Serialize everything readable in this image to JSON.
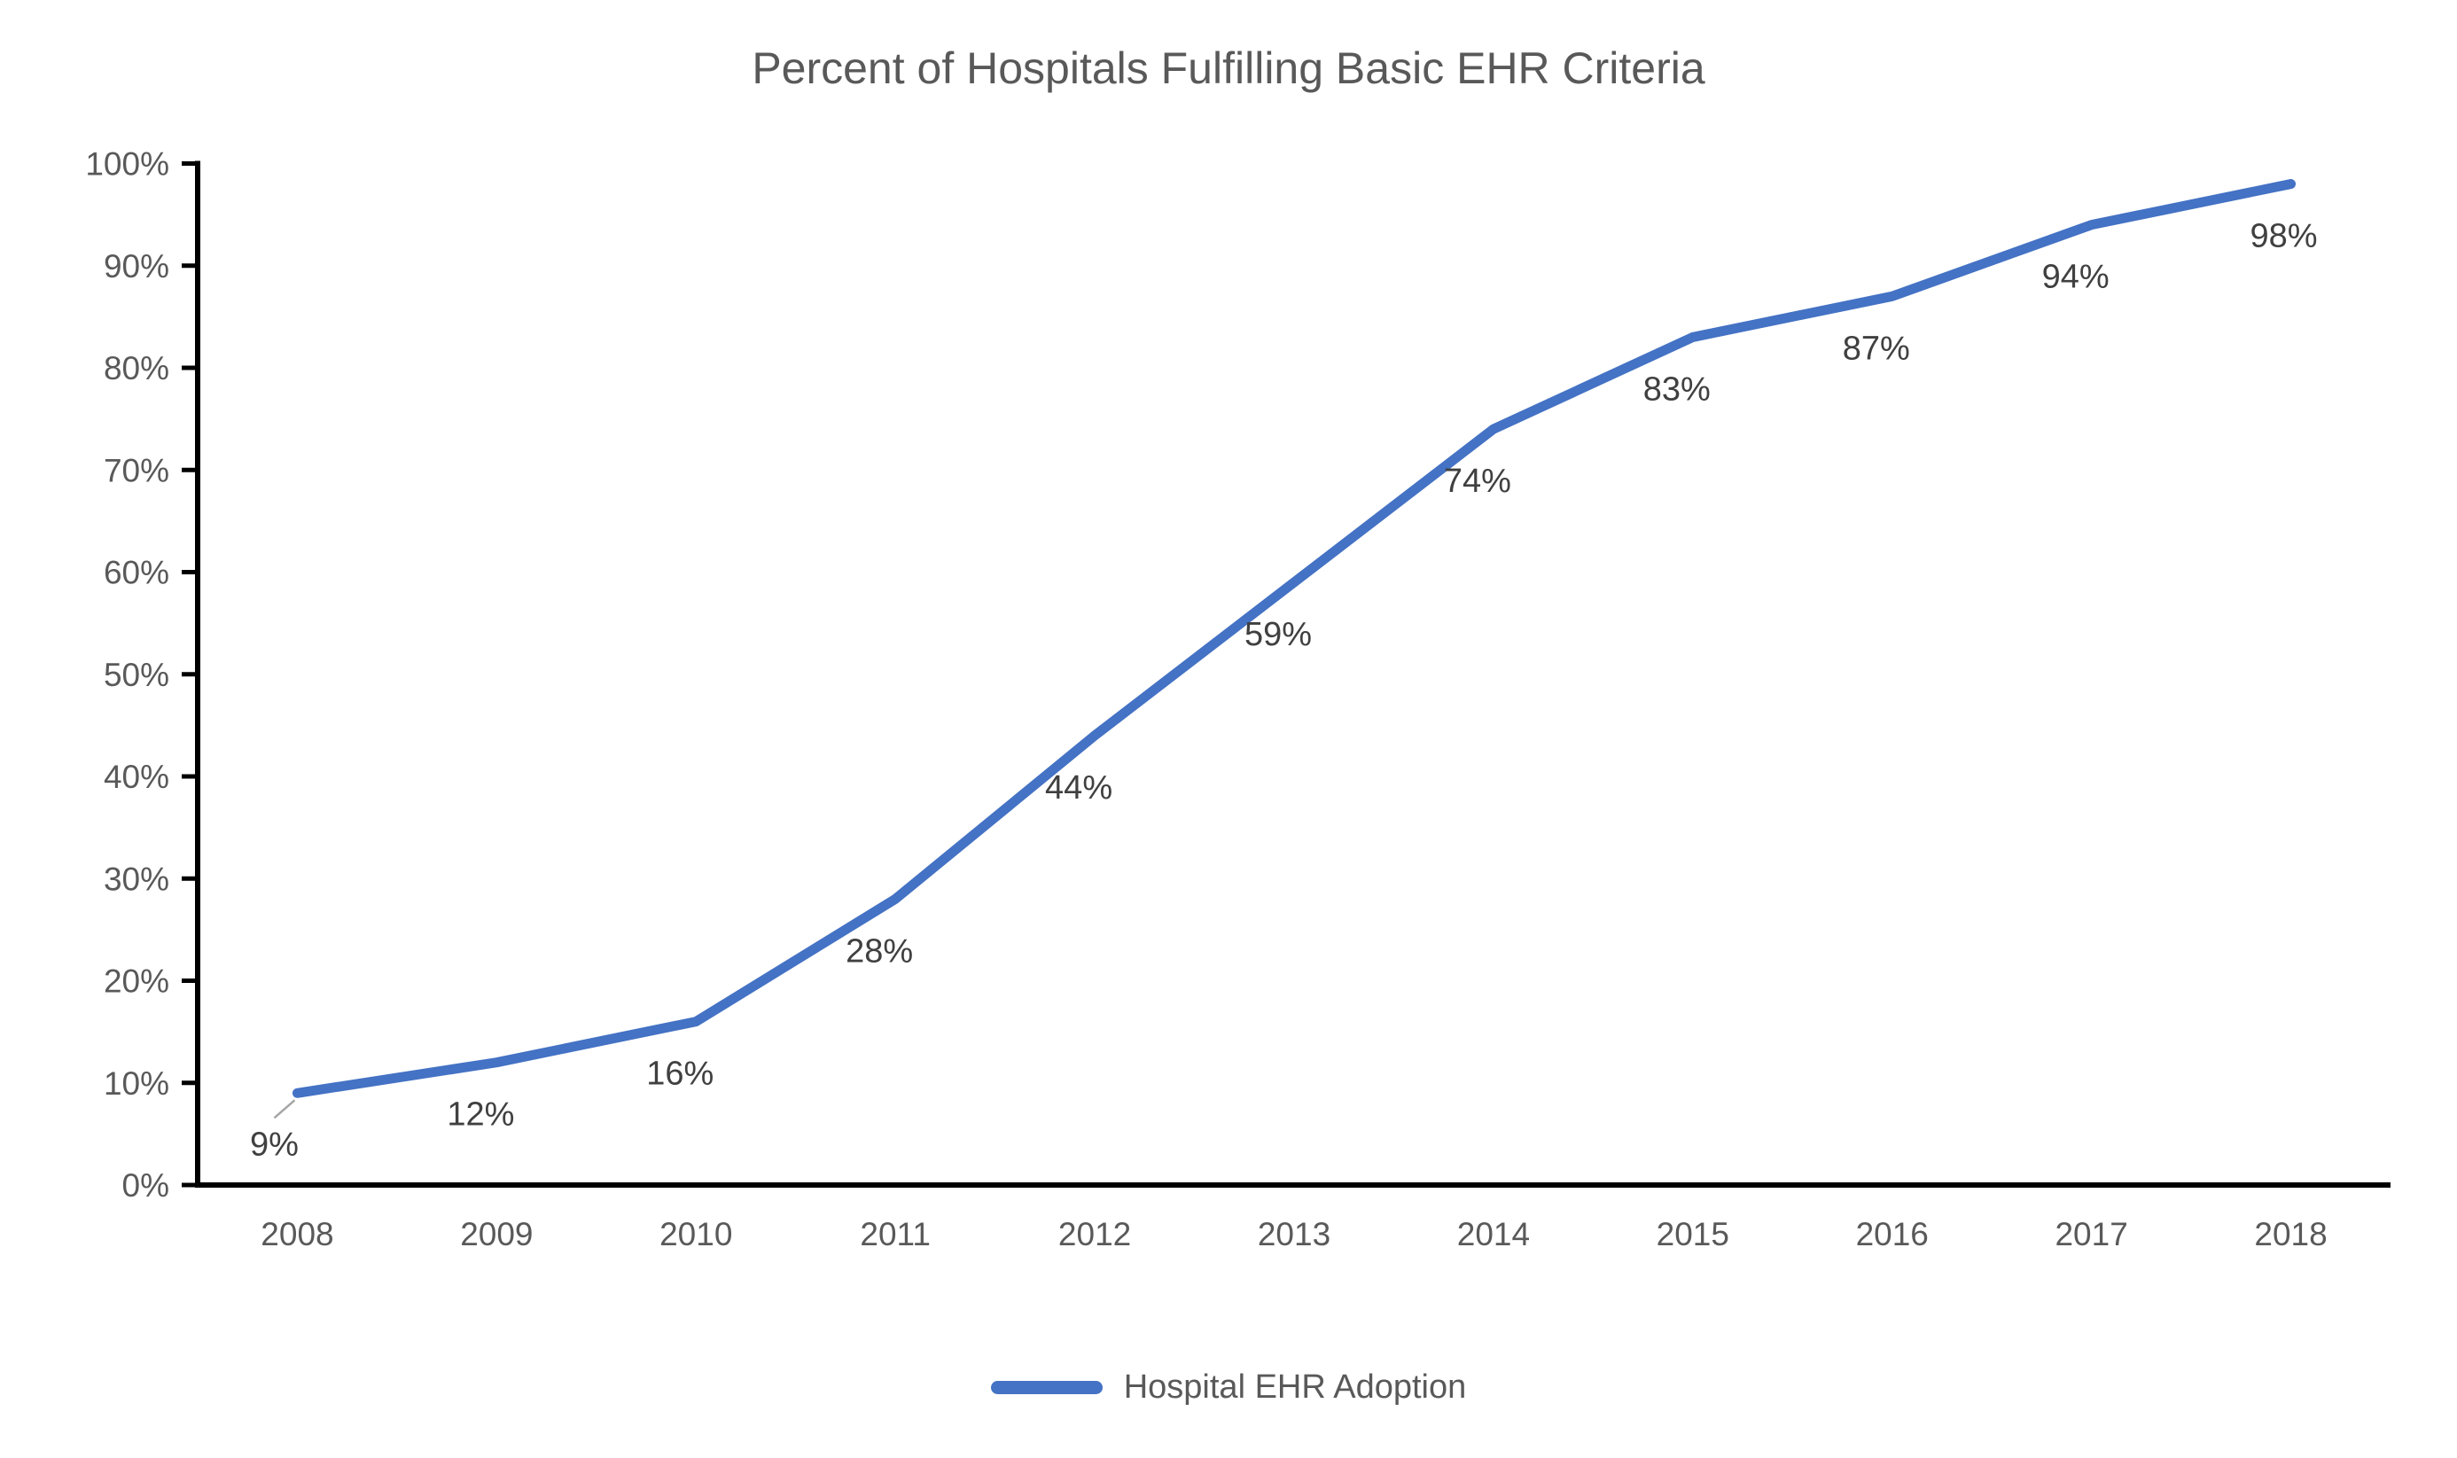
{
  "title": "Percent of Hospitals Fulfilling Basic EHR Criteria",
  "legend": {
    "label": "Hospital EHR Adoption",
    "swatch_color": "#4472C4"
  },
  "colors": {
    "line": "#4472C4",
    "axis": "#000000",
    "tick_label": "#595959",
    "data_label": "#404040",
    "title_text": "#595959",
    "leader_line": "#A6A6A6",
    "background": "#FFFFFF"
  },
  "chart_data": {
    "type": "line",
    "title": "Percent of Hospitals Fulfilling Basic EHR Criteria",
    "categories": [
      "2008",
      "2009",
      "2010",
      "2011",
      "2012",
      "2013",
      "2014",
      "2015",
      "2016",
      "2017",
      "2018"
    ],
    "series": [
      {
        "name": "Hospital EHR Adoption",
        "color": "#4472C4",
        "values": [
          9,
          12,
          16,
          28,
          44,
          59,
          74,
          83,
          87,
          94,
          98
        ]
      }
    ],
    "data_labels": [
      "9%",
      "12%",
      "16%",
      "28%",
      "44%",
      "59%",
      "74%",
      "83%",
      "87%",
      "94%",
      "98%"
    ],
    "xlabel": "",
    "ylabel": "",
    "ylim": [
      0,
      100
    ],
    "ytick_step": 10,
    "ytick_labels": [
      "0%",
      "10%",
      "20%",
      "30%",
      "40%",
      "50%",
      "60%",
      "70%",
      "80%",
      "90%",
      "100%"
    ],
    "grid": "off",
    "legend_position": "bottom"
  }
}
